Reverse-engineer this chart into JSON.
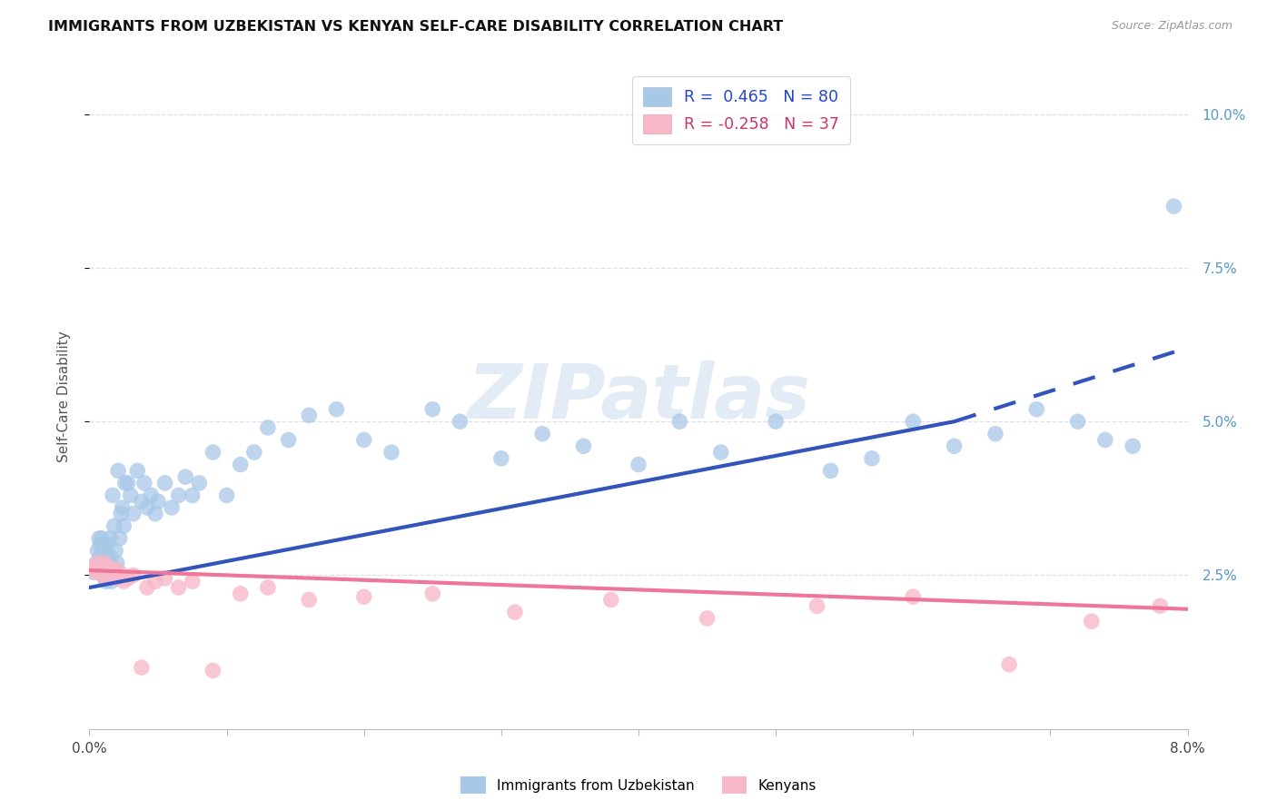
{
  "title": "IMMIGRANTS FROM UZBEKISTAN VS KENYAN SELF-CARE DISABILITY CORRELATION CHART",
  "source": "Source: ZipAtlas.com",
  "ylabel": "Self-Care Disability",
  "ytick_values": [
    0.025,
    0.05,
    0.075,
    0.1
  ],
  "ytick_labels": [
    "2.5%",
    "5.0%",
    "7.5%",
    "10.0%"
  ],
  "xlim": [
    0.0,
    0.08
  ],
  "ylim": [
    0.0,
    0.108
  ],
  "blue_color": "#A8C8E8",
  "pink_color": "#F8B8C8",
  "blue_line_color": "#3355BB",
  "pink_line_color": "#EE7799",
  "grid_color": "#DDDDEE",
  "background_color": "#FFFFFF",
  "watermark": "ZIPatlas",
  "legend_blue_label": "R =  0.465   N = 80",
  "legend_pink_label": "R = -0.258   N = 37",
  "legend_blue_series": "Immigrants from Uzbekistan",
  "legend_pink_series": "Kenyans",
  "blue_x": [
    0.0003,
    0.0005,
    0.0006,
    0.0007,
    0.0007,
    0.0008,
    0.0008,
    0.0009,
    0.0009,
    0.001,
    0.001,
    0.001,
    0.0011,
    0.0011,
    0.0012,
    0.0012,
    0.0013,
    0.0013,
    0.0014,
    0.0014,
    0.0015,
    0.0015,
    0.0016,
    0.0016,
    0.0017,
    0.0018,
    0.0018,
    0.0019,
    0.002,
    0.0021,
    0.0022,
    0.0023,
    0.0024,
    0.0025,
    0.0026,
    0.0028,
    0.003,
    0.0032,
    0.0035,
    0.0038,
    0.004,
    0.0042,
    0.0045,
    0.0048,
    0.005,
    0.0055,
    0.006,
    0.0065,
    0.007,
    0.0075,
    0.008,
    0.009,
    0.01,
    0.011,
    0.012,
    0.013,
    0.0145,
    0.016,
    0.018,
    0.02,
    0.022,
    0.025,
    0.027,
    0.03,
    0.033,
    0.036,
    0.04,
    0.043,
    0.046,
    0.05,
    0.054,
    0.057,
    0.06,
    0.063,
    0.066,
    0.069,
    0.072,
    0.074,
    0.076,
    0.079
  ],
  "blue_y": [
    0.0255,
    0.027,
    0.029,
    0.031,
    0.026,
    0.028,
    0.03,
    0.027,
    0.031,
    0.025,
    0.026,
    0.029,
    0.025,
    0.027,
    0.024,
    0.028,
    0.026,
    0.03,
    0.025,
    0.027,
    0.028,
    0.031,
    0.024,
    0.0265,
    0.038,
    0.026,
    0.033,
    0.029,
    0.027,
    0.042,
    0.031,
    0.035,
    0.036,
    0.033,
    0.04,
    0.04,
    0.038,
    0.035,
    0.042,
    0.037,
    0.04,
    0.036,
    0.038,
    0.035,
    0.037,
    0.04,
    0.036,
    0.038,
    0.041,
    0.038,
    0.04,
    0.045,
    0.038,
    0.043,
    0.045,
    0.049,
    0.047,
    0.051,
    0.052,
    0.047,
    0.045,
    0.052,
    0.05,
    0.044,
    0.048,
    0.046,
    0.043,
    0.05,
    0.045,
    0.05,
    0.042,
    0.044,
    0.05,
    0.046,
    0.048,
    0.052,
    0.05,
    0.047,
    0.046,
    0.085
  ],
  "pink_x": [
    0.0003,
    0.0005,
    0.0006,
    0.0008,
    0.0009,
    0.001,
    0.0011,
    0.0012,
    0.0014,
    0.0015,
    0.0016,
    0.0018,
    0.002,
    0.0022,
    0.0025,
    0.0028,
    0.0032,
    0.0038,
    0.0042,
    0.0048,
    0.0055,
    0.0065,
    0.0075,
    0.009,
    0.011,
    0.013,
    0.016,
    0.02,
    0.025,
    0.031,
    0.038,
    0.045,
    0.053,
    0.06,
    0.067,
    0.073,
    0.078
  ],
  "pink_y": [
    0.026,
    0.0255,
    0.027,
    0.0255,
    0.026,
    0.025,
    0.027,
    0.026,
    0.025,
    0.026,
    0.025,
    0.026,
    0.0245,
    0.0255,
    0.024,
    0.0245,
    0.025,
    0.01,
    0.023,
    0.024,
    0.0245,
    0.023,
    0.024,
    0.0095,
    0.022,
    0.023,
    0.021,
    0.0215,
    0.022,
    0.019,
    0.021,
    0.018,
    0.02,
    0.0215,
    0.0105,
    0.0175,
    0.02
  ],
  "blue_line_x0": 0.0,
  "blue_line_x_solid_end": 0.063,
  "blue_line_x_dash_end": 0.08,
  "blue_line_y0": 0.023,
  "blue_line_y_solid_end": 0.05,
  "blue_line_y_dash_end": 0.062,
  "pink_line_x0": 0.0,
  "pink_line_x_end": 0.08,
  "pink_line_y0": 0.0258,
  "pink_line_y_end": 0.0195
}
